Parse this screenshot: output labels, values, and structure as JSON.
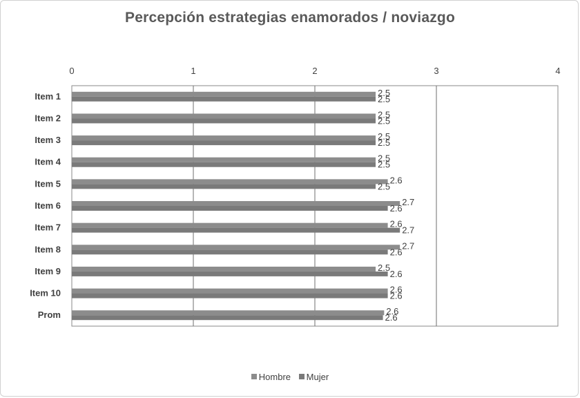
{
  "chart_data": {
    "type": "bar",
    "orientation": "horizontal",
    "title": "Percepción estrategias enamorados / noviazgo",
    "xlabel": "",
    "ylabel": "",
    "xlim": [
      0,
      4
    ],
    "x_ticks": [
      "0",
      "1",
      "2",
      "3",
      "4"
    ],
    "grid": true,
    "legend_position": "bottom",
    "categories": [
      "Item 1",
      "Item 2",
      "Item 3",
      "Item 4",
      "Item 5",
      "Item 6",
      "Item 7",
      "Item 8",
      "Item 9",
      "Item 10",
      "Prom"
    ],
    "series": [
      {
        "name": "Hombre",
        "color": "#8c8c8c",
        "values": [
          2.5,
          2.5,
          2.5,
          2.5,
          2.6,
          2.7,
          2.6,
          2.7,
          2.5,
          2.6,
          2.57
        ],
        "labels": [
          "2.5",
          "2.5",
          "2.5",
          "2.5",
          "2.6",
          "2.7",
          "2.6",
          "2.7",
          "2.5",
          "2.6",
          "2.6"
        ]
      },
      {
        "name": "Mujer",
        "color": "#7a7a7a",
        "values": [
          2.5,
          2.5,
          2.5,
          2.5,
          2.5,
          2.6,
          2.7,
          2.6,
          2.6,
          2.6,
          2.56
        ],
        "labels": [
          "2.5",
          "2.5",
          "2.5",
          "2.5",
          "2.5",
          "2.6",
          "2.7",
          "2.6",
          "2.6",
          "2.6",
          "2.6"
        ]
      }
    ]
  }
}
